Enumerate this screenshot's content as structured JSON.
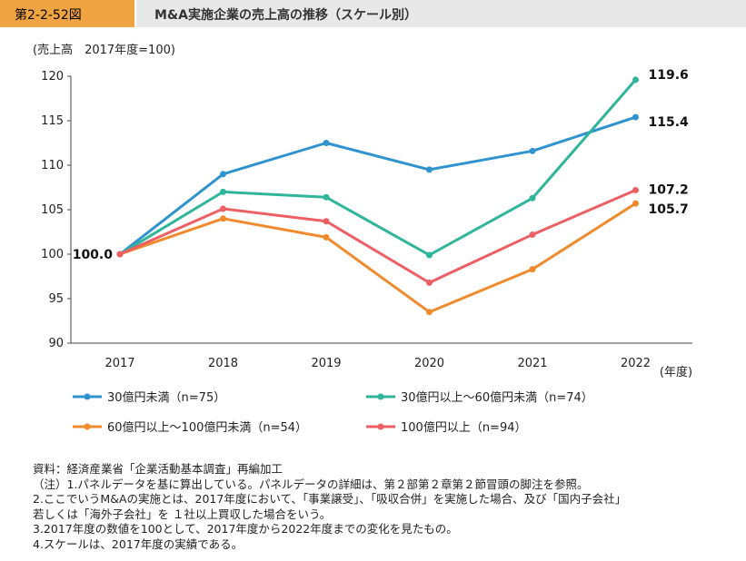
{
  "header": {
    "figure_number": "第2-2-52図",
    "title": "M&A実施企業の売上高の推移（スケール別）"
  },
  "chart_data": {
    "type": "line",
    "title": "M&A実施企業の売上高の推移（スケール別）",
    "ylabel": "(売上高　2017年度=100)",
    "xlabel": "(年度)",
    "ylim": [
      90,
      120
    ],
    "yticks": [
      90,
      95,
      100,
      105,
      110,
      115,
      120
    ],
    "categories": [
      "2017",
      "2018",
      "2019",
      "2020",
      "2021",
      "2022"
    ],
    "series": [
      {
        "name": "30億円未満（n=75）",
        "color": "#2e93cf",
        "values": [
          100.0,
          109.0,
          112.5,
          109.5,
          111.6,
          115.4
        ],
        "end_label": "115.4"
      },
      {
        "name": "30億円以上～60億円未満（n=74）",
        "color": "#2eb59a",
        "values": [
          100.0,
          107.0,
          106.4,
          99.9,
          106.3,
          119.6
        ],
        "end_label": "119.6"
      },
      {
        "name": "60億円以上～100億円未満（n=54）",
        "color": "#f08a2c",
        "values": [
          100.0,
          104.0,
          101.9,
          93.5,
          98.3,
          105.7
        ],
        "end_label": "105.7"
      },
      {
        "name": "100億円以上（n=94）",
        "color": "#ec5f63",
        "values": [
          100.0,
          105.1,
          103.7,
          96.8,
          102.2,
          107.2
        ],
        "end_label": "107.2"
      }
    ],
    "start_label": "100.0",
    "grid": false,
    "legend_position": "bottom"
  },
  "notes": {
    "source": "資料：経済産業省「企業活動基本調査」再編加工",
    "lines": [
      "（注）1.パネルデータを基に算出している。パネルデータの詳細は、第２部第２章第２節冒頭の脚注を参照。",
      "2.ここでいうM&Aの実施とは、2017年度において、「事業譲受」、「吸収合併」を実施した場合、及び「国内子会社」",
      "若しくは「海外子会社」を １社以上買収した場合をいう。",
      "3.2017年度の数値を100として、2017年度から2022年度までの変化を見たもの。",
      "4.スケールは、2017年度の実績である。"
    ]
  }
}
